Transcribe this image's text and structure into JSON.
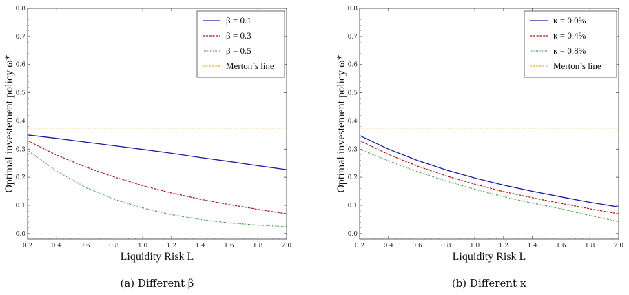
{
  "chart_data": [
    {
      "type": "line",
      "caption": "(a) Different β",
      "xlabel": "Liquidity Risk L",
      "ylabel": "Optimal investement policy ω*",
      "xlim": [
        0.2,
        2.0
      ],
      "ylim": [
        -0.02,
        0.8
      ],
      "xticks": [
        "0.2",
        "0.4",
        "0.6",
        "0.8",
        "1.0",
        "1.2",
        "1.4",
        "1.6",
        "1.8",
        "2.0"
      ],
      "yticks": [
        "0.0",
        "0.1",
        "0.2",
        "0.3",
        "0.4",
        "0.5",
        "0.6",
        "0.7",
        "0.8"
      ],
      "legend_position": "top-right",
      "series": [
        {
          "name": "β = 0.1",
          "color": "#1a1aa6",
          "style": "solid",
          "x": [
            0.2,
            0.4,
            0.6,
            0.8,
            1.0,
            1.2,
            1.4,
            1.6,
            1.8,
            2.0
          ],
          "values": [
            0.35,
            0.338,
            0.325,
            0.312,
            0.299,
            0.285,
            0.27,
            0.256,
            0.241,
            0.227
          ]
        },
        {
          "name": "β = 0.3",
          "color": "#a01818",
          "style": "dashed",
          "x": [
            0.2,
            0.4,
            0.6,
            0.8,
            1.0,
            1.2,
            1.4,
            1.6,
            1.8,
            2.0
          ],
          "values": [
            0.33,
            0.279,
            0.237,
            0.201,
            0.17,
            0.144,
            0.122,
            0.103,
            0.086,
            0.07
          ]
        },
        {
          "name": "β = 0.5",
          "color": "#2e8b2e",
          "style": "dotted",
          "x": [
            0.2,
            0.4,
            0.6,
            0.8,
            1.0,
            1.2,
            1.4,
            1.6,
            1.8,
            2.0
          ],
          "values": [
            0.296,
            0.222,
            0.165,
            0.122,
            0.091,
            0.067,
            0.05,
            0.038,
            0.03,
            0.024
          ]
        },
        {
          "name": "Merton’s line",
          "color": "#f2a623",
          "style": "dashed-fine",
          "x": [
            0.2,
            2.0
          ],
          "values": [
            0.375,
            0.375
          ]
        }
      ]
    },
    {
      "type": "line",
      "caption": "(b) Different κ",
      "xlabel": "Liquidity Risk L",
      "ylabel": "Optimal investement policy ω*",
      "xlim": [
        0.2,
        2.0
      ],
      "ylim": [
        -0.02,
        0.8
      ],
      "xticks": [
        "0.2",
        "0.4",
        "0.6",
        "0.8",
        "1.0",
        "1.2",
        "1.4",
        "1.6",
        "1.8",
        "2.0"
      ],
      "yticks": [
        "0.0",
        "0.1",
        "0.2",
        "0.3",
        "0.4",
        "0.5",
        "0.6",
        "0.7",
        "0.8"
      ],
      "legend_position": "top-right",
      "series": [
        {
          "name": "κ = 0.0%",
          "color": "#1a1aa6",
          "style": "solid",
          "x": [
            0.2,
            0.4,
            0.6,
            0.8,
            1.0,
            1.2,
            1.4,
            1.6,
            1.8,
            2.0
          ],
          "values": [
            0.348,
            0.3,
            0.26,
            0.226,
            0.197,
            0.172,
            0.15,
            0.13,
            0.111,
            0.094
          ]
        },
        {
          "name": "κ = 0.4%",
          "color": "#a01818",
          "style": "dashed",
          "x": [
            0.2,
            0.4,
            0.6,
            0.8,
            1.0,
            1.2,
            1.4,
            1.6,
            1.8,
            2.0
          ],
          "values": [
            0.33,
            0.281,
            0.24,
            0.205,
            0.175,
            0.149,
            0.127,
            0.107,
            0.088,
            0.07
          ]
        },
        {
          "name": "κ = 0.8%",
          "color": "#2e8b2e",
          "style": "dotted",
          "x": [
            0.2,
            0.4,
            0.6,
            0.8,
            1.0,
            1.2,
            1.4,
            1.6,
            1.8,
            2.0
          ],
          "values": [
            0.3,
            0.258,
            0.22,
            0.187,
            0.157,
            0.131,
            0.108,
            0.088,
            0.064,
            0.043
          ]
        },
        {
          "name": "Merton’s line",
          "color": "#f2a623",
          "style": "dashed-fine",
          "x": [
            0.2,
            2.0
          ],
          "values": [
            0.375,
            0.375
          ]
        }
      ]
    }
  ]
}
